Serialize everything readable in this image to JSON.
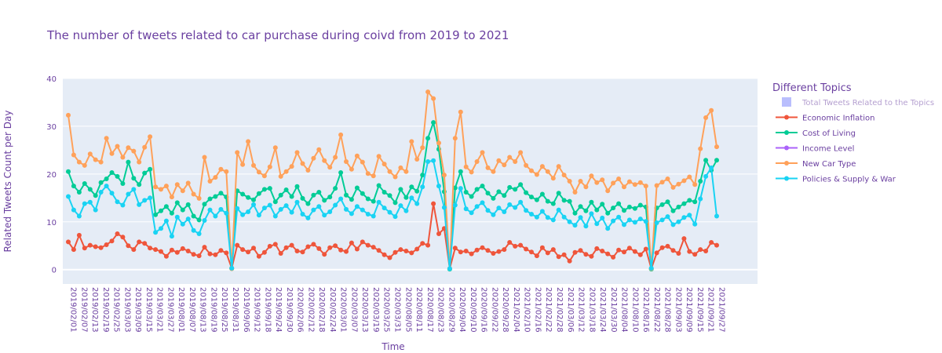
{
  "chart_data": {
    "type": "line",
    "title": "The number of tweets related to car purchase during coivd from 2019 to 2021",
    "xlabel": "Time",
    "ylabel": "Related Tweets Count per Day",
    "ylim": [
      -3,
      40
    ],
    "yticks": [
      0,
      10,
      20,
      30,
      40
    ],
    "grid": true,
    "legend_position": "right",
    "legend_title": "Different Topics",
    "colors": {
      "plot_bg": "#e5ecf6",
      "grid": "#ffffff",
      "text": "#6a3fa0"
    },
    "x_tick_labels": [
      "2019/02/01",
      "2019/02/07",
      "2019/02/13",
      "2019/02/19",
      "2019/02/25",
      "2019/03/03",
      "2019/03/09",
      "2019/03/15",
      "2019/03/21",
      "2019/03/27",
      "2019/08/01",
      "2019/08/07",
      "2019/08/13",
      "2019/08/19",
      "2019/08/25",
      "2019/08/31",
      "2019/09/06",
      "2019/09/12",
      "2019/09/18",
      "2019/09/24",
      "2019/09/30",
      "2020/02/06",
      "2020/02/12",
      "2020/02/18",
      "2020/02/24",
      "2020/03/01",
      "2020/03/07",
      "2020/03/13",
      "2020/03/19",
      "2020/03/25",
      "2020/03/31",
      "2020/08/05",
      "2020/08/11",
      "2020/08/17",
      "2020/08/23",
      "2020/08/29",
      "2020/09/04",
      "2020/09/10",
      "2020/09/16",
      "2020/09/22",
      "2020/09/28",
      "2021/02/04",
      "2021/02/10",
      "2021/02/16",
      "2021/02/22",
      "2021/02/28",
      "2021/03/06",
      "2021/03/12",
      "2021/03/18",
      "2021/03/24",
      "2021/03/30",
      "2021/08/04",
      "2021/08/10",
      "2021/08/16",
      "2021/08/22",
      "2021/08/28",
      "2021/09/03",
      "2021/09/09",
      "2021/09/15",
      "2021/09/21",
      "2021/09/27"
    ],
    "series": [
      {
        "name": "Total Tweets Related to the Topics",
        "color": "#636efa",
        "legend_faded": true,
        "values": []
      },
      {
        "name": "Economic Inflation",
        "color": "#ef553b",
        "values": [
          5.8,
          4.2,
          7.2,
          4.5,
          5.1,
          4.8,
          4.6,
          5.2,
          6.0,
          7.5,
          6.8,
          5.0,
          4.2,
          5.8,
          5.5,
          4.5,
          4.2,
          3.8,
          2.8,
          4.1,
          3.6,
          4.4,
          3.9,
          3.2,
          2.9,
          4.7,
          3.3,
          3.1,
          4.0,
          3.5,
          0.3,
          5.1,
          4.2,
          3.7,
          4.5,
          2.8,
          3.6,
          4.9,
          5.3,
          3.4,
          4.6,
          5.1,
          3.9,
          3.7,
          4.8,
          5.3,
          4.4,
          3.2,
          4.6,
          5.0,
          4.1,
          3.8,
          5.6,
          4.3,
          5.8,
          5.1,
          4.7,
          4.0,
          3.1,
          2.5,
          3.6,
          4.2,
          3.9,
          3.5,
          4.3,
          5.5,
          5.1,
          13.8,
          7.5,
          8.6,
          0.2,
          4.5,
          3.7,
          3.9,
          3.3,
          4.1,
          4.6,
          4.0,
          3.4,
          3.8,
          4.2,
          5.7,
          4.9,
          5.1,
          4.3,
          3.7,
          2.9,
          4.6,
          3.5,
          4.2,
          2.7,
          3.1,
          1.8,
          3.6,
          4.0,
          3.2,
          2.8,
          4.4,
          3.9,
          3.3,
          2.6,
          4.1,
          3.7,
          4.5,
          3.8,
          3.1,
          4.3,
          0.2,
          3.5,
          4.6,
          4.9,
          4.0,
          3.4,
          6.5,
          3.8,
          3.2,
          4.2,
          3.9,
          5.7,
          5.1
        ]
      },
      {
        "name": "Cost of Living",
        "color": "#00cc96",
        "values": [
          20.5,
          17.5,
          16.2,
          18.0,
          16.8,
          15.5,
          18.2,
          19.0,
          20.3,
          19.5,
          18.0,
          22.5,
          19.1,
          17.8,
          20.2,
          21.0,
          11.5,
          12.3,
          13.2,
          11.8,
          14.0,
          12.5,
          13.6,
          11.2,
          10.4,
          13.7,
          14.8,
          15.3,
          16.0,
          15.2,
          0.2,
          16.5,
          15.8,
          15.1,
          14.6,
          15.9,
          16.8,
          17.0,
          14.2,
          15.6,
          16.7,
          15.3,
          17.4,
          14.9,
          13.8,
          15.6,
          16.2,
          14.5,
          15.2,
          17.0,
          20.3,
          15.6,
          14.7,
          17.1,
          15.9,
          14.8,
          14.3,
          17.6,
          16.2,
          15.5,
          14.0,
          16.8,
          15.1,
          17.3,
          16.4,
          19.8,
          27.5,
          30.8,
          25.2,
          16.3,
          0.1,
          17.1,
          20.5,
          16.2,
          15.3,
          16.8,
          17.5,
          16.0,
          14.9,
          16.3,
          15.5,
          17.2,
          16.8,
          17.8,
          16.1,
          15.2,
          14.6,
          15.8,
          14.3,
          13.8,
          16.0,
          14.5,
          14.3,
          11.8,
          13.2,
          12.3,
          14.1,
          12.5,
          13.7,
          11.8,
          12.9,
          13.8,
          12.4,
          13.1,
          12.8,
          13.5,
          13.1,
          0.1,
          12.9,
          13.6,
          14.2,
          12.3,
          13.1,
          13.8,
          14.5,
          14.2,
          18.5,
          22.9,
          20.8,
          22.9
        ]
      },
      {
        "name": "Income Level",
        "color": "#ab63fa",
        "values": []
      },
      {
        "name": "New Car Type",
        "color": "#ffa15a",
        "values": [
          32.3,
          24.0,
          22.5,
          21.8,
          24.2,
          23.0,
          22.5,
          27.5,
          24.3,
          25.8,
          23.5,
          25.5,
          24.8,
          22.5,
          25.6,
          27.8,
          17.3,
          16.8,
          17.5,
          15.2,
          17.8,
          16.5,
          18.1,
          15.8,
          14.9,
          23.5,
          18.5,
          19.3,
          21.0,
          20.5,
          0.2,
          24.5,
          22.0,
          26.8,
          21.8,
          20.4,
          19.6,
          21.5,
          25.5,
          19.5,
          20.5,
          21.6,
          24.5,
          22.2,
          20.8,
          23.3,
          25.1,
          22.8,
          21.4,
          23.5,
          28.2,
          22.6,
          21.0,
          23.8,
          22.5,
          20.1,
          19.6,
          23.7,
          22.1,
          20.5,
          19.4,
          21.3,
          20.5,
          26.8,
          23.1,
          25.5,
          37.2,
          35.8,
          26.5,
          19.8,
          0.2,
          27.5,
          33.0,
          21.5,
          20.4,
          22.6,
          24.5,
          21.3,
          20.5,
          22.8,
          21.9,
          23.5,
          22.6,
          24.5,
          21.8,
          20.7,
          19.9,
          21.6,
          20.5,
          19.1,
          21.6,
          19.8,
          18.5,
          16.2,
          18.5,
          17.3,
          19.6,
          18.2,
          18.8,
          16.5,
          18.1,
          19.0,
          17.3,
          18.4,
          17.8,
          18.2,
          17.5,
          0.2,
          17.6,
          18.3,
          19.0,
          17.2,
          17.9,
          18.6,
          19.4,
          17.8,
          25.3,
          31.8,
          33.3,
          25.7
        ]
      },
      {
        "name": "Policies & Supply & War",
        "color": "#19d3f3",
        "values": [
          15.3,
          12.5,
          11.2,
          13.8,
          14.1,
          12.5,
          16.2,
          17.5,
          16.0,
          14.2,
          13.5,
          15.8,
          16.8,
          13.6,
          14.5,
          15.0,
          7.8,
          8.6,
          10.2,
          7.0,
          11.0,
          9.5,
          10.6,
          8.2,
          7.5,
          10.3,
          12.5,
          11.2,
          12.6,
          11.8,
          0.3,
          12.8,
          11.5,
          12.1,
          13.6,
          11.4,
          12.9,
          13.5,
          11.2,
          12.6,
          13.4,
          12.0,
          14.1,
          11.6,
          10.8,
          12.5,
          13.2,
          11.4,
          12.1,
          13.5,
          14.8,
          12.6,
          11.7,
          13.2,
          12.5,
          11.6,
          11.2,
          14.1,
          12.9,
          12.0,
          11.1,
          13.4,
          12.3,
          15.0,
          13.8,
          17.3,
          22.6,
          22.8,
          17.5,
          13.0,
          0.2,
          13.5,
          17.0,
          12.7,
          11.9,
          13.2,
          14.0,
          12.4,
          11.5,
          12.9,
          12.1,
          13.6,
          13.0,
          14.1,
          12.4,
          11.6,
          11.0,
          12.2,
          10.9,
          10.4,
          12.5,
          11.0,
          10.0,
          9.3,
          10.9,
          9.1,
          11.7,
          9.6,
          10.8,
          8.6,
          10.2,
          11.0,
          9.4,
          10.4,
          9.9,
          10.6,
          10.1,
          0.3,
          9.8,
          10.4,
          11.1,
          9.4,
          10.0,
          10.9,
          11.4,
          9.5,
          14.8,
          19.5,
          21.3,
          11.2
        ]
      }
    ]
  }
}
